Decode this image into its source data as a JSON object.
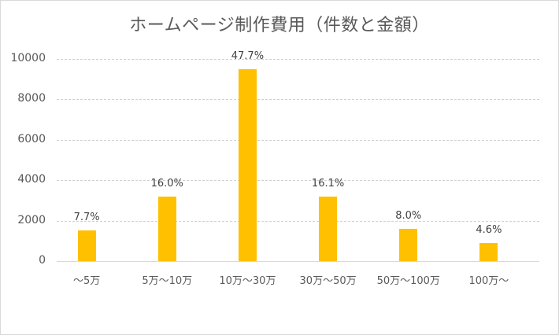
{
  "chart_data": {
    "type": "bar",
    "title": "ホームページ制作費用（件数と金額）",
    "xlabel": "",
    "ylabel": "",
    "ylim": [
      0,
      10000
    ],
    "yticks": [
      "0",
      "2000",
      "4000",
      "6000",
      "8000",
      "10000"
    ],
    "grid": true,
    "legend": "none",
    "categories": [
      "～5万",
      "5万～10万",
      "10万～30万",
      "30万～50万",
      "50万～100万",
      "100万～"
    ],
    "values": [
      1520,
      3180,
      9480,
      3200,
      1580,
      910
    ],
    "data_labels": [
      "7.7%",
      "16.0%",
      "47.7%",
      "16.1%",
      "8.0%",
      "4.6%"
    ],
    "bar_color": "#ffc000"
  }
}
